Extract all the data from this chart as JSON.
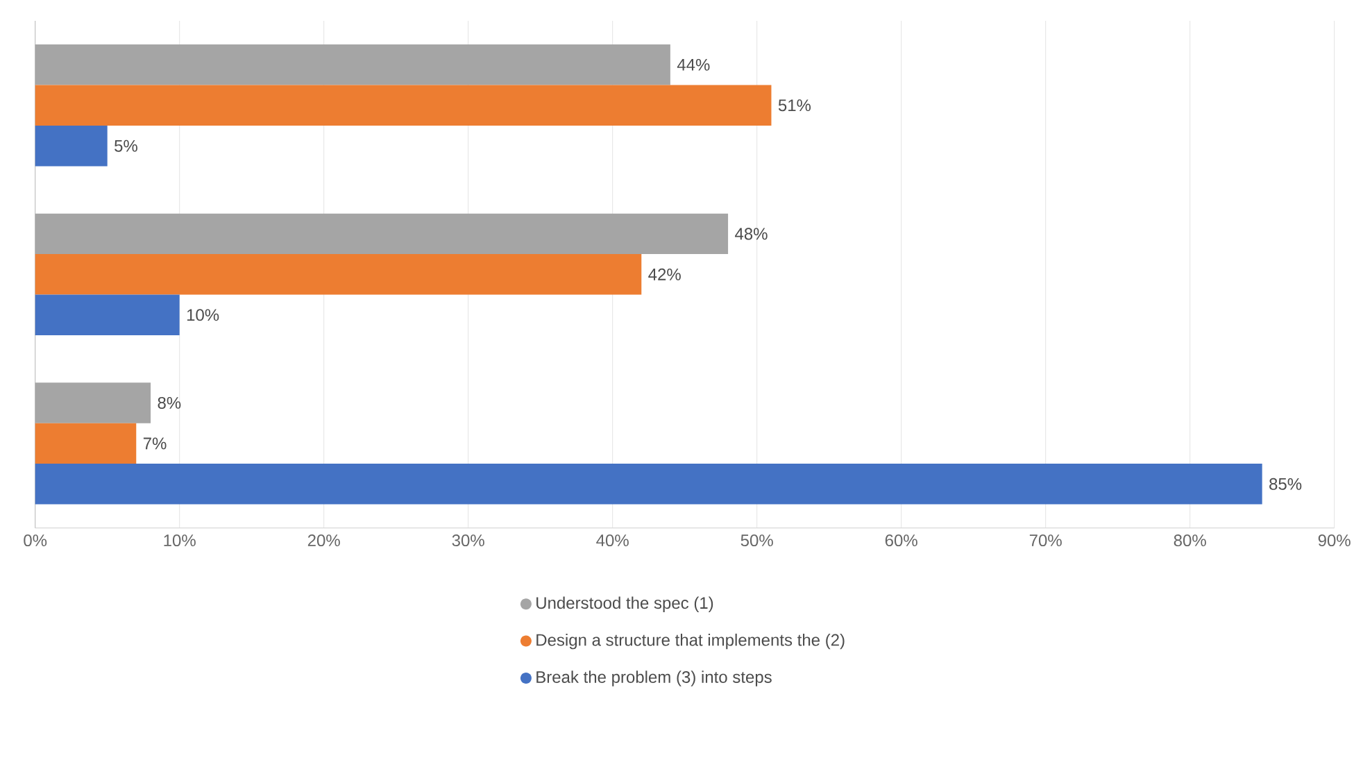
{
  "chart_data": {
    "type": "bar",
    "orientation": "horizontal",
    "categories": [
      null,
      null,
      null
    ],
    "series": [
      {
        "name": "Understood the spec (1)",
        "color": "#a5a5a5",
        "values": [
          44,
          48,
          8
        ],
        "value_labels": [
          "44%",
          "48%",
          "8%"
        ]
      },
      {
        "name": "Design a structure that implements the (2)",
        "color": "#ed7d31",
        "values": [
          51,
          42,
          7
        ],
        "value_labels": [
          "51%",
          "42%",
          "7%"
        ]
      },
      {
        "name": "Break the problem (3) into steps",
        "color": "#4472c4",
        "values": [
          5,
          10,
          85
        ],
        "value_labels": [
          "5%",
          "10%",
          "85%"
        ]
      }
    ],
    "xlim": [
      0,
      90
    ],
    "xticks": [
      {
        "value": 0,
        "label": "0%"
      },
      {
        "value": 10,
        "label": "10%"
      },
      {
        "value": 20,
        "label": "20%"
      },
      {
        "value": 30,
        "label": "30%"
      },
      {
        "value": 40,
        "label": "40%"
      },
      {
        "value": 50,
        "label": "50%"
      },
      {
        "value": 60,
        "label": "60%"
      },
      {
        "value": 70,
        "label": "70%"
      },
      {
        "value": 80,
        "label": "80%"
      },
      {
        "value": 90,
        "label": "90%"
      }
    ],
    "grid": "x",
    "legend": "bottom"
  }
}
